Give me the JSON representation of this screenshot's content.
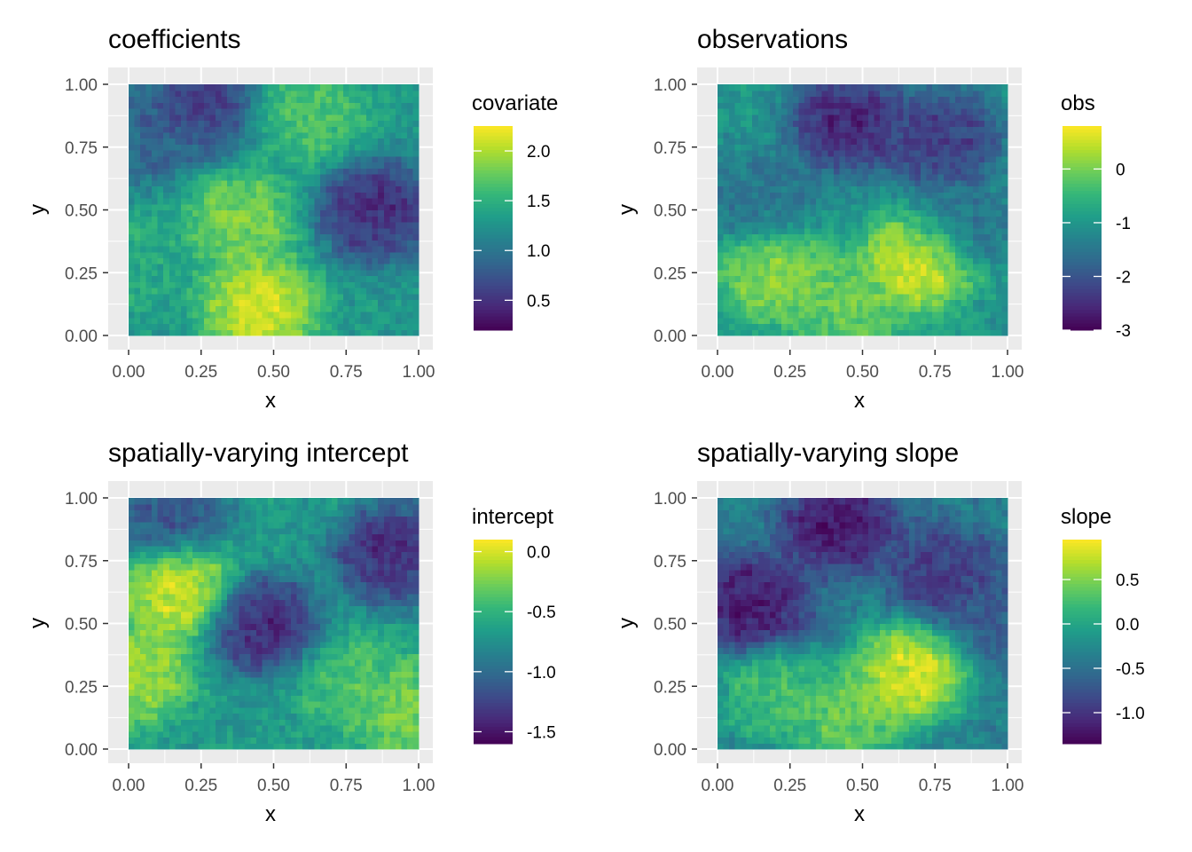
{
  "colors": {
    "panel_background": "#ebebeb",
    "grid_major": "#ffffff",
    "tick_label": "#4d4d4d",
    "palette": "viridis"
  },
  "chart_data": [
    {
      "type": "heatmap",
      "title": "coefficients",
      "xlabel": "x",
      "ylabel": "y",
      "xlim": [
        0,
        1
      ],
      "ylim": [
        0,
        1
      ],
      "x_ticks": [
        "0.00",
        "0.25",
        "0.50",
        "0.75",
        "1.00"
      ],
      "y_ticks": [
        "0.00",
        "0.25",
        "0.50",
        "0.75",
        "1.00"
      ],
      "grid_resolution": [
        50,
        42
      ],
      "color_scale": {
        "title": "covariate",
        "palette": "viridis",
        "range": [
          0.2,
          2.25
        ],
        "breaks": [
          0.5,
          1.0,
          1.5,
          2.0
        ],
        "labels": [
          "0.5",
          "1.0",
          "1.5",
          "2.0"
        ]
      },
      "features": [
        {
          "x": 0.45,
          "y": 0.12,
          "value": 2.2
        },
        {
          "x": 0.38,
          "y": 0.45,
          "value": 1.9
        },
        {
          "x": 0.05,
          "y": 0.3,
          "value": 1.5
        },
        {
          "x": 0.85,
          "y": 0.5,
          "value": 0.35
        },
        {
          "x": 0.25,
          "y": 0.92,
          "value": 0.5
        },
        {
          "x": 0.05,
          "y": 0.8,
          "value": 0.8
        },
        {
          "x": 0.62,
          "y": 0.88,
          "value": 1.7
        }
      ]
    },
    {
      "type": "heatmap",
      "title": "observations",
      "xlabel": "x",
      "ylabel": "y",
      "xlim": [
        0,
        1
      ],
      "ylim": [
        0,
        1
      ],
      "x_ticks": [
        "0.00",
        "0.25",
        "0.50",
        "0.75",
        "1.00"
      ],
      "y_ticks": [
        "0.00",
        "0.25",
        "0.50",
        "0.75",
        "1.00"
      ],
      "grid_resolution": [
        50,
        42
      ],
      "color_scale": {
        "title": "obs",
        "palette": "viridis",
        "range": [
          -3.0,
          0.8
        ],
        "breaks": [
          -3,
          -2,
          -1,
          0
        ],
        "labels": [
          "-3",
          "-2",
          "-1",
          "0"
        ]
      },
      "features": [
        {
          "x": 0.7,
          "y": 0.3,
          "value": 0.8
        },
        {
          "x": 0.2,
          "y": 0.25,
          "value": 0.3
        },
        {
          "x": 0.45,
          "y": 0.12,
          "value": 0.0
        },
        {
          "x": 0.45,
          "y": 0.85,
          "value": -2.8
        },
        {
          "x": 0.78,
          "y": 0.78,
          "value": -2.5
        },
        {
          "x": 0.15,
          "y": 0.55,
          "value": -1.6
        },
        {
          "x": 0.85,
          "y": 0.45,
          "value": -1.6
        }
      ]
    },
    {
      "type": "heatmap",
      "title": "spatially-varying intercept",
      "xlabel": "x",
      "ylabel": "y",
      "xlim": [
        0,
        1
      ],
      "ylim": [
        0,
        1
      ],
      "x_ticks": [
        "0.00",
        "0.25",
        "0.50",
        "0.75",
        "1.00"
      ],
      "y_ticks": [
        "0.00",
        "0.25",
        "0.50",
        "0.75",
        "1.00"
      ],
      "grid_resolution": [
        50,
        42
      ],
      "color_scale": {
        "title": "intercept",
        "palette": "viridis",
        "range": [
          -1.6,
          0.1
        ],
        "breaks": [
          -1.5,
          -1.0,
          -0.5,
          0.0
        ],
        "labels": [
          "-1.5",
          "-1.0",
          "-0.5",
          "0.0"
        ]
      },
      "features": [
        {
          "x": 0.18,
          "y": 0.62,
          "value": 0.05
        },
        {
          "x": 0.02,
          "y": 0.3,
          "value": -0.1
        },
        {
          "x": 0.8,
          "y": 0.25,
          "value": -0.35
        },
        {
          "x": 0.98,
          "y": 0.15,
          "value": -0.2
        },
        {
          "x": 0.45,
          "y": 0.5,
          "value": -1.5
        },
        {
          "x": 0.9,
          "y": 0.78,
          "value": -1.45
        },
        {
          "x": 0.15,
          "y": 0.95,
          "value": -1.2
        }
      ]
    },
    {
      "type": "heatmap",
      "title": "spatially-varying slope",
      "xlabel": "x",
      "ylabel": "y",
      "xlim": [
        0,
        1
      ],
      "ylim": [
        0,
        1
      ],
      "x_ticks": [
        "0.00",
        "0.25",
        "0.50",
        "0.75",
        "1.00"
      ],
      "y_ticks": [
        "0.00",
        "0.25",
        "0.50",
        "0.75",
        "1.00"
      ],
      "grid_resolution": [
        50,
        42
      ],
      "color_scale": {
        "title": "slope",
        "palette": "viridis",
        "range": [
          -1.35,
          0.95
        ],
        "breaks": [
          -1.0,
          -0.5,
          0.0,
          0.5
        ],
        "labels": [
          "-1.0",
          "-0.5",
          "0.0",
          "0.5"
        ]
      },
      "features": [
        {
          "x": 0.66,
          "y": 0.3,
          "value": 0.95
        },
        {
          "x": 0.45,
          "y": 0.12,
          "value": 0.5
        },
        {
          "x": 0.2,
          "y": 0.22,
          "value": 0.3
        },
        {
          "x": 0.12,
          "y": 0.58,
          "value": -1.3
        },
        {
          "x": 0.42,
          "y": 0.9,
          "value": -1.3
        },
        {
          "x": 0.78,
          "y": 0.7,
          "value": -1.0
        },
        {
          "x": 0.98,
          "y": 0.55,
          "value": -0.7
        }
      ]
    }
  ]
}
